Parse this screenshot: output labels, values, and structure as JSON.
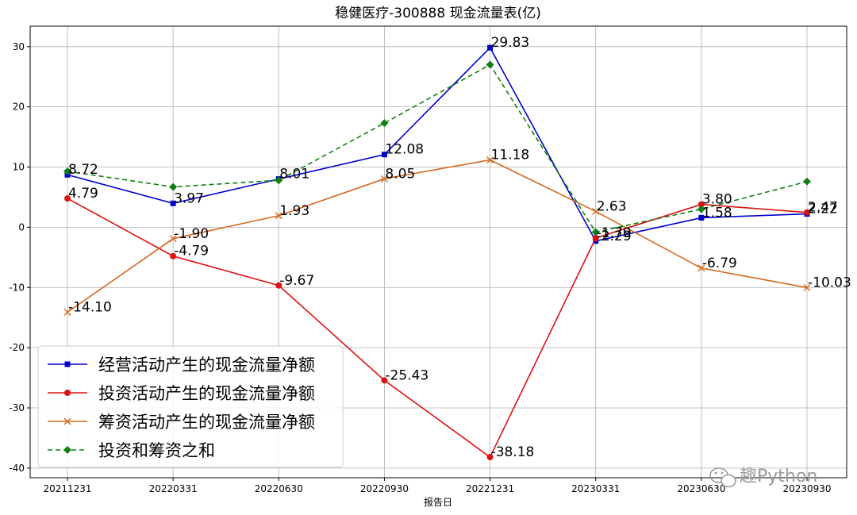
{
  "chart_data": {
    "type": "line",
    "title": "稳健医疗-300888 现金流量表(亿)",
    "xlabel": "报告日",
    "ylabel": "",
    "categories": [
      "20211231",
      "20220331",
      "20220630",
      "20220930",
      "20221231",
      "20230331",
      "20230630",
      "20230930"
    ],
    "ylim": [
      -41.6,
      33.4
    ],
    "yticks": [
      30,
      20,
      10,
      0,
      -10,
      -20,
      -30,
      -40
    ],
    "grid": true,
    "legend_position": "lower-left",
    "series": [
      {
        "name": "经营活动产生的现金流量净额",
        "color": "#0000cc",
        "marker": "square",
        "linestyle": "solid",
        "values": [
          8.72,
          3.97,
          8.01,
          12.08,
          29.83,
          -2.29,
          1.58,
          2.22
        ],
        "labels": [
          "8.72",
          "3.97",
          "8.01",
          "12.08",
          "29.83",
          "-2.29",
          "1.58",
          "2.22"
        ]
      },
      {
        "name": "投资活动产生的现金流量净额",
        "color": "#dd1111",
        "marker": "circle",
        "linestyle": "solid",
        "values": [
          4.79,
          -4.79,
          -9.67,
          -25.43,
          -38.18,
          -1.79,
          3.8,
          2.47
        ],
        "labels": [
          "4.79",
          "-4.79",
          "-9.67",
          "-25.43",
          "-38.18",
          "-1.79",
          "3.80",
          "2.47"
        ]
      },
      {
        "name": "筹资活动产生的现金流量净额",
        "color": "#d2691e",
        "marker": "x",
        "linestyle": "solid",
        "values": [
          -14.1,
          -1.9,
          1.93,
          8.05,
          11.18,
          2.63,
          -6.79,
          -10.03
        ],
        "labels": [
          "-14.10",
          "-1.90",
          "1.93",
          "8.05",
          "11.18",
          "2.63",
          "-6.79",
          "-10.03"
        ]
      },
      {
        "name": "投资和筹资之和",
        "color": "#108010",
        "marker": "diamond",
        "linestyle": "dashed",
        "values": [
          9.3,
          6.7,
          7.8,
          17.3,
          27.0,
          -0.8,
          3.0,
          7.6
        ],
        "labels": []
      }
    ]
  },
  "watermark": {
    "text": "趣Python",
    "icon": "wechat-icon"
  }
}
